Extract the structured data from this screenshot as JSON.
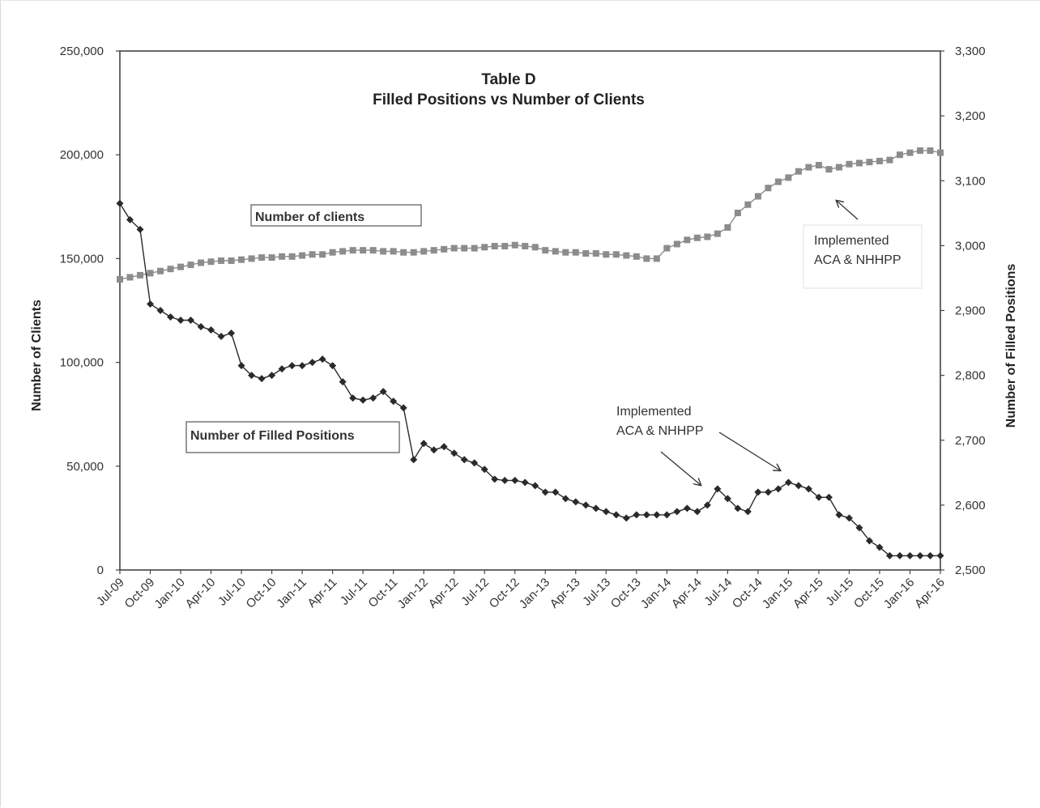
{
  "chart_data": {
    "type": "line",
    "title": "Table D",
    "subtitle": "Filled Positions vs Number of Clients",
    "ylabel_left": "Number of Clients",
    "ylabel_right": "Number of Filled Positions",
    "ylim_left": [
      0,
      250000
    ],
    "ylim_right": [
      2500,
      3300
    ],
    "yticks_left": [
      "0",
      "50,000",
      "100,000",
      "150,000",
      "200,000",
      "250,000"
    ],
    "yticks_left_values": [
      0,
      50000,
      100000,
      150000,
      200000,
      250000
    ],
    "yticks_right": [
      "2,500",
      "2,600",
      "2,700",
      "2,800",
      "2,900",
      "3,000",
      "3,100",
      "3,200",
      "3,300"
    ],
    "yticks_right_values": [
      2500,
      2600,
      2700,
      2800,
      2900,
      3000,
      3100,
      3200,
      3300
    ],
    "x_ticks": [
      "Jul-09",
      "Oct-09",
      "Jan-10",
      "Apr-10",
      "Jul-10",
      "Oct-10",
      "Jan-11",
      "Apr-11",
      "Jul-11",
      "Oct-11",
      "Jan-12",
      "Apr-12",
      "Jul-12",
      "Oct-12",
      "Jan-13",
      "Apr-13",
      "Jul-13",
      "Oct-13",
      "Jan-14",
      "Apr-14",
      "Jul-14",
      "Oct-14",
      "Jan-15",
      "Apr-15",
      "Jul-15",
      "Oct-15",
      "Jan-16",
      "Apr-16"
    ],
    "x_start": "Jul-09",
    "x_end": "Apr-16",
    "grid": false,
    "colors": {
      "clients": "#8c8c8c",
      "positions": "#2a2a2a",
      "axis": "#444444"
    },
    "series": [
      {
        "name": "Number of clients",
        "axis": "left",
        "marker": "square",
        "values": [
          140000,
          141000,
          142000,
          143000,
          144000,
          145000,
          146000,
          147000,
          148000,
          148500,
          149000,
          149000,
          149500,
          150000,
          150500,
          150500,
          151000,
          151000,
          151500,
          152000,
          152000,
          153000,
          153500,
          154000,
          154000,
          154000,
          153500,
          153500,
          153000,
          153000,
          153500,
          154000,
          154500,
          155000,
          155000,
          155000,
          155500,
          156000,
          156000,
          156500,
          156000,
          155500,
          154000,
          153500,
          153000,
          153000,
          152500,
          152500,
          152000,
          152000,
          151500,
          151000,
          150000,
          150000,
          155000,
          157000,
          159000,
          160000,
          160500,
          162000,
          165000,
          172000,
          176000,
          180000,
          184000,
          187000,
          189000,
          192000,
          194000,
          195000,
          193000,
          194000,
          195500,
          196000,
          196500,
          197000,
          197500,
          200000,
          201000,
          202000,
          202000,
          201000
        ]
      },
      {
        "name": "Number of Filled Positions",
        "axis": "right",
        "marker": "diamond",
        "values": [
          3065,
          3040,
          3025,
          2910,
          2900,
          2890,
          2885,
          2885,
          2875,
          2870,
          2860,
          2865,
          2815,
          2800,
          2795,
          2800,
          2810,
          2815,
          2815,
          2820,
          2825,
          2815,
          2790,
          2765,
          2762,
          2765,
          2775,
          2760,
          2750,
          2670,
          2695,
          2685,
          2690,
          2680,
          2670,
          2665,
          2655,
          2640,
          2638,
          2638,
          2635,
          2630,
          2620,
          2620,
          2610,
          2605,
          2600,
          2595,
          2590,
          2585,
          2580,
          2585,
          2585,
          2585,
          2585,
          2590,
          2595,
          2590,
          2600,
          2625,
          2610,
          2595,
          2590,
          2620,
          2620,
          2625,
          2635,
          2630,
          2625,
          2612,
          2612,
          2585,
          2580,
          2565,
          2545,
          2535,
          2522,
          2522,
          2522,
          2522,
          2522,
          2522
        ]
      }
    ],
    "legend_boxes": {
      "clients": "Number of clients",
      "positions": "Number of Filled Positions"
    },
    "annotations": [
      {
        "line1": "Implemented",
        "line2": "ACA & NHHPP"
      },
      {
        "line1": "Implemented",
        "line2": "ACA & NHHPP"
      }
    ]
  }
}
